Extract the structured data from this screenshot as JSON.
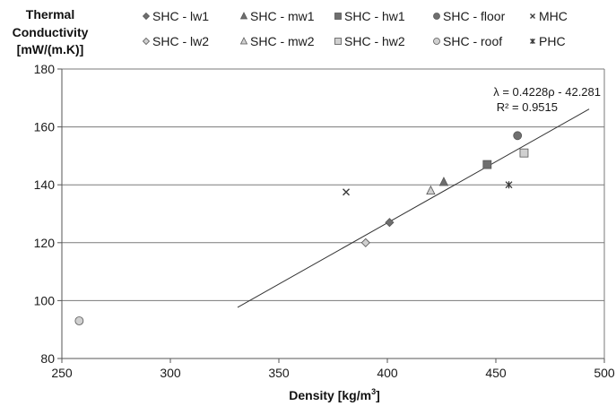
{
  "chart_data": {
    "type": "scatter",
    "xlabel": "Density [kg/m",
    "xlabel_sup": "3",
    "xlabel_end": "]",
    "ylabel_lines": [
      "Thermal",
      "Conductivity",
      "[mW/(m.K)]"
    ],
    "xlim": [
      250,
      500
    ],
    "ylim": [
      80,
      180
    ],
    "x_ticks": [
      "250",
      "300",
      "350",
      "400",
      "450",
      "500"
    ],
    "y_ticks": [
      "80",
      "100",
      "120",
      "140",
      "160",
      "180"
    ],
    "grid": "horizontal",
    "legend_position": "top",
    "series": [
      {
        "name": "SHC - lw1",
        "marker": "diamond",
        "fill": "#6f6f6f",
        "points": [
          [
            401,
            127
          ]
        ]
      },
      {
        "name": "SHC - mw1",
        "marker": "triangle",
        "fill": "#6f6f6f",
        "points": [
          [
            426,
            141
          ]
        ]
      },
      {
        "name": "SHC - hw1",
        "marker": "square",
        "fill": "#6f6f6f",
        "points": [
          [
            446,
            147
          ]
        ]
      },
      {
        "name": "SHC - floor",
        "marker": "circle",
        "fill": "#6f6f6f",
        "points": [
          [
            460,
            157
          ]
        ]
      },
      {
        "name": "MHC",
        "marker": "x",
        "fill": "#3a3a3a",
        "points": [
          [
            381,
            137.5
          ]
        ]
      },
      {
        "name": "SHC - lw2",
        "marker": "diamond",
        "fill": "#d0d0d0",
        "points": [
          [
            390,
            120
          ]
        ]
      },
      {
        "name": "SHC - mw2",
        "marker": "triangle",
        "fill": "#d0d0d0",
        "points": [
          [
            420,
            138
          ]
        ]
      },
      {
        "name": "SHC - hw2",
        "marker": "square",
        "fill": "#d0d0d0",
        "points": [
          [
            463,
            151
          ]
        ]
      },
      {
        "name": "SHC - roof",
        "marker": "circle",
        "fill": "#d0d0d0",
        "points": [
          [
            258,
            93
          ]
        ]
      },
      {
        "name": "PHC",
        "marker": "star",
        "fill": "#3a3a3a",
        "points": [
          [
            456,
            140
          ]
        ]
      }
    ],
    "trendline": {
      "slope": 0.4228,
      "intercept": -42.281,
      "x_range": [
        331,
        493
      ],
      "equation": "λ = 0.4228ρ - 42.281",
      "r2": "R² = 0.9515"
    }
  }
}
